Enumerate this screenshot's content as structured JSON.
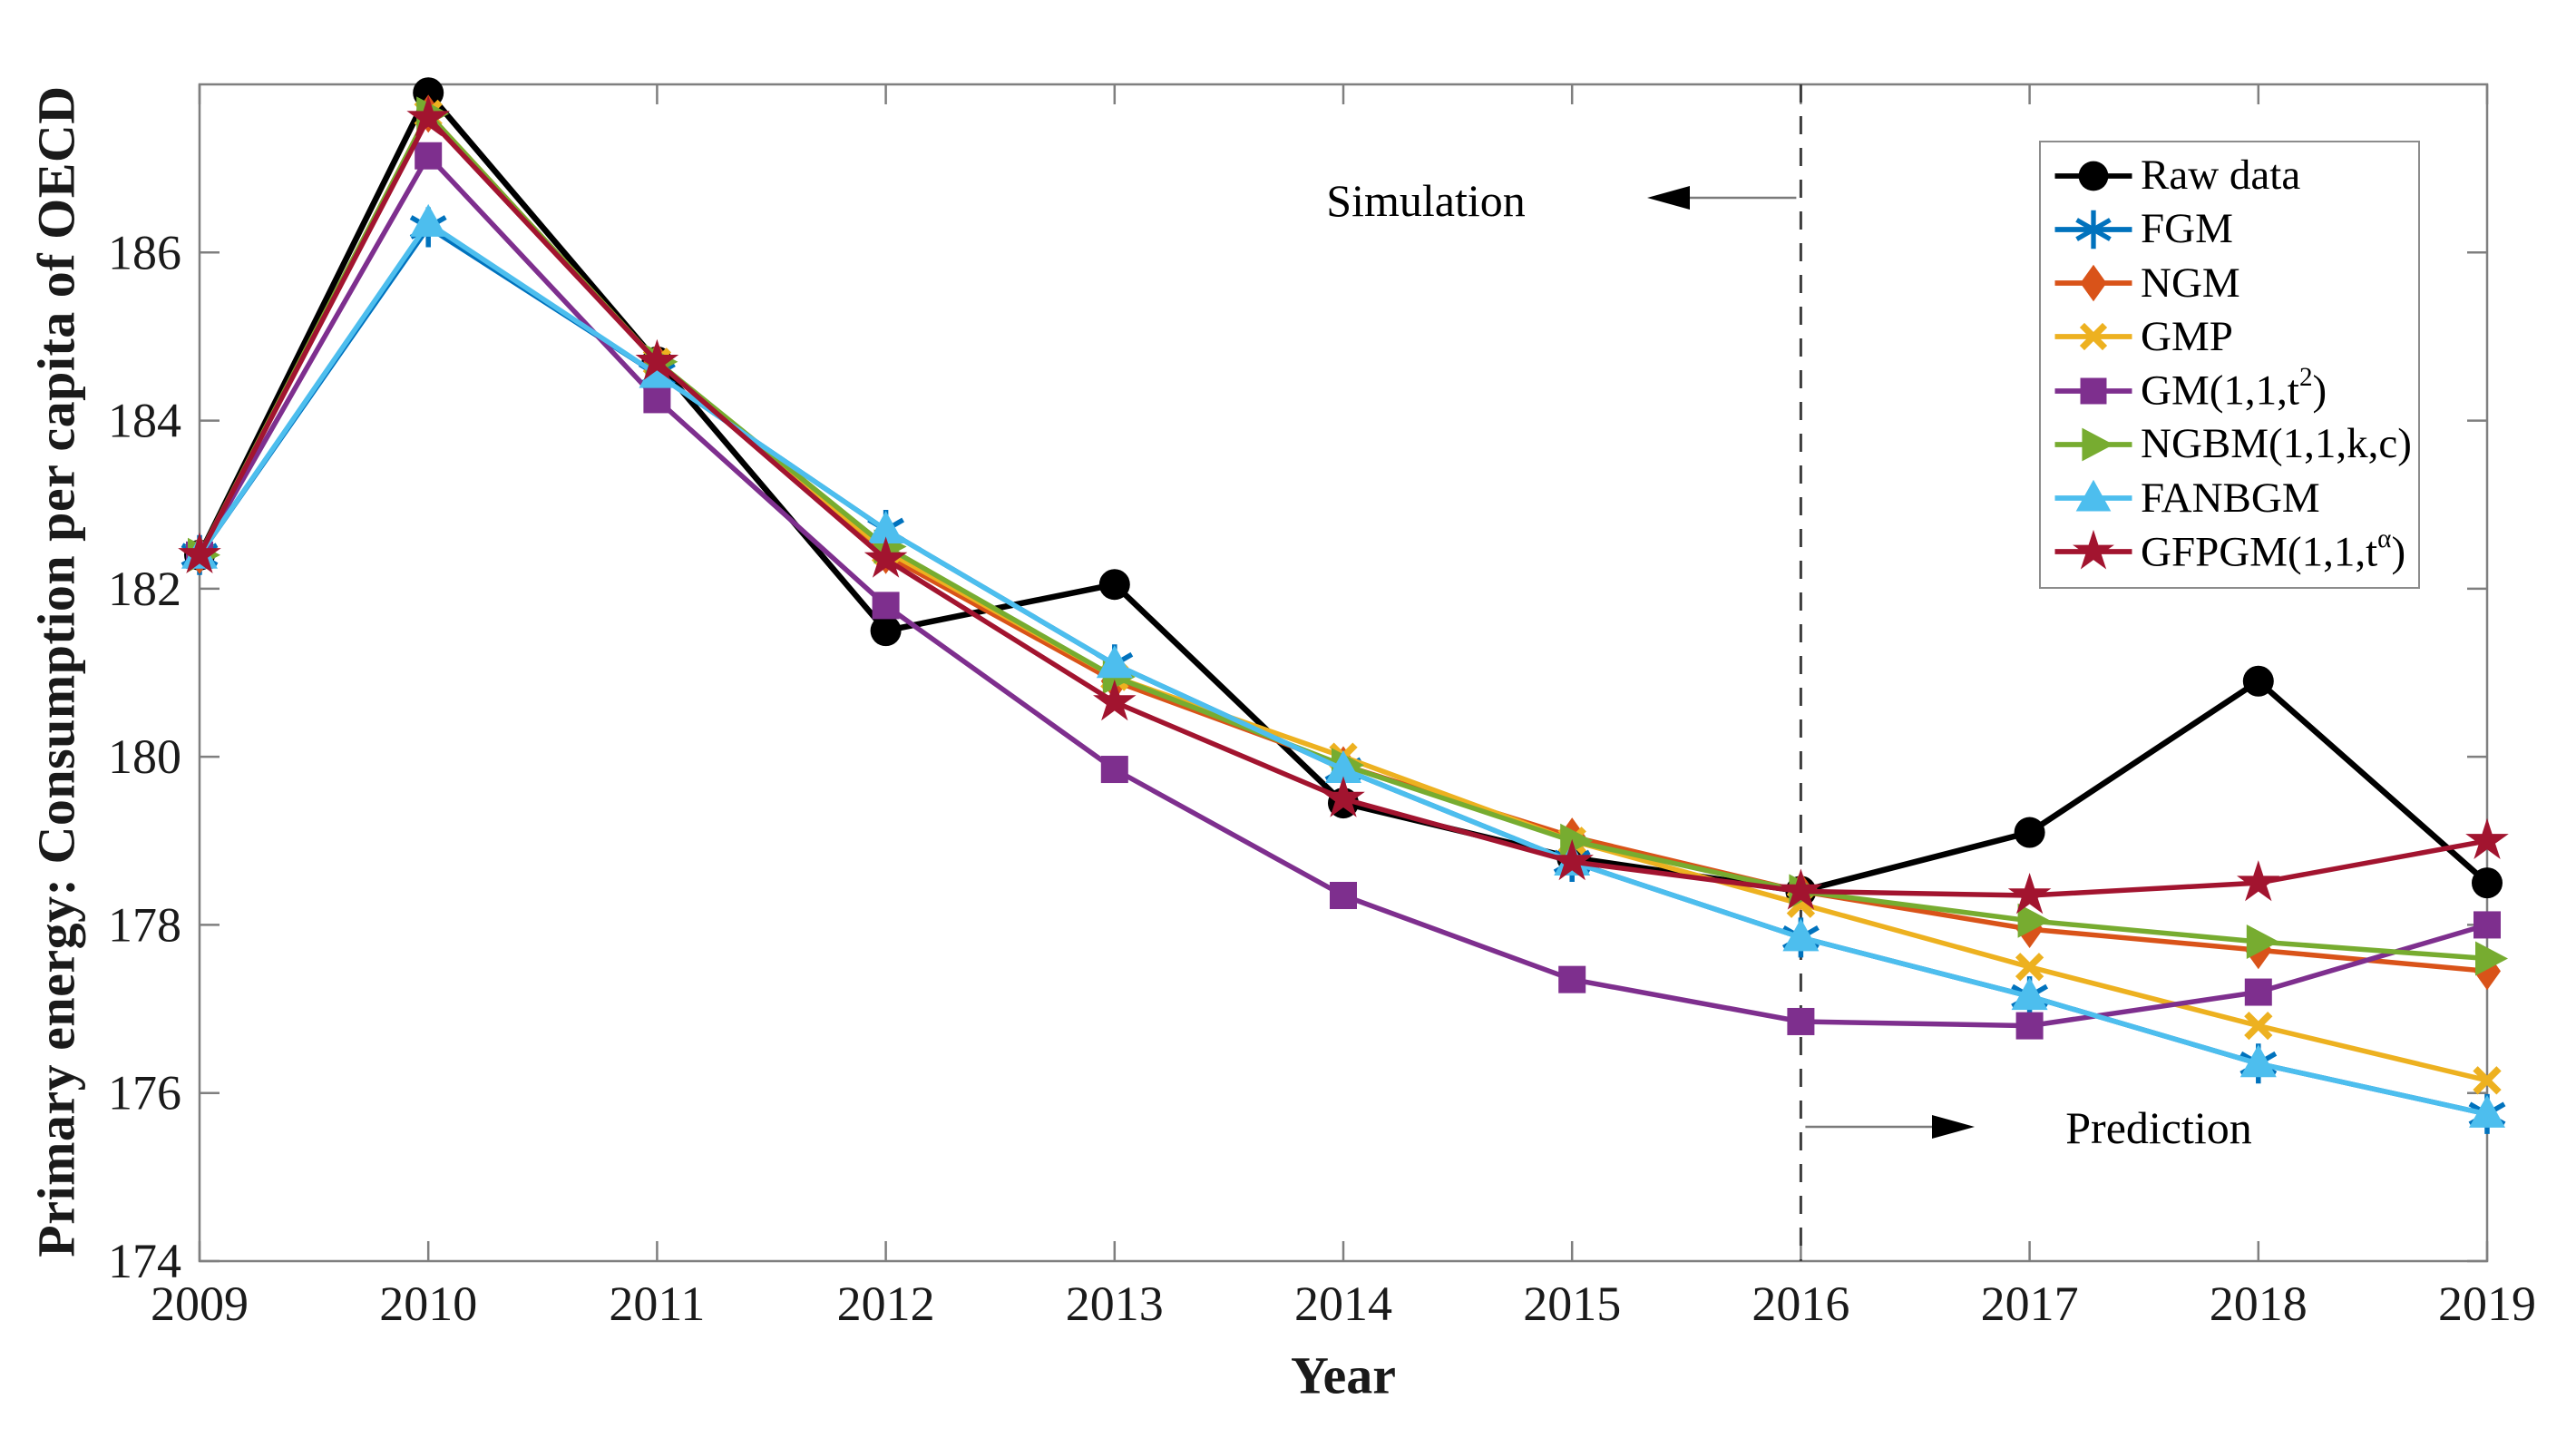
{
  "figure": {
    "ylabel": "Primary energy: Consumption per capita of OECD",
    "xlabel": "Year",
    "annotations": {
      "simulation": "Simulation",
      "prediction": "Prediction"
    }
  },
  "chart_data": {
    "type": "line",
    "title": "",
    "xlabel": "Year",
    "ylabel": "Primary energy: Consumption per capita of OECD",
    "x": [
      2009,
      2010,
      2011,
      2012,
      2013,
      2014,
      2015,
      2016,
      2017,
      2018,
      2019
    ],
    "xlim": [
      2009,
      2019
    ],
    "ylim": [
      174,
      188
    ],
    "yticks": [
      174,
      176,
      178,
      180,
      182,
      184,
      186
    ],
    "grid": false,
    "legend_position": "upper-right-inside",
    "split_line_x": 2016,
    "axis_color": "#7f7f7f",
    "split_line_color": "#3d3d3d",
    "series": [
      {
        "name": "Raw data",
        "label_segments": [
          {
            "t": "Raw data"
          }
        ],
        "color": "#000000",
        "marker": "circle",
        "values": [
          182.4,
          187.9,
          184.7,
          181.5,
          182.05,
          179.45,
          178.8,
          178.4,
          179.1,
          180.9,
          178.5
        ]
      },
      {
        "name": "FGM",
        "label_segments": [
          {
            "t": "FGM"
          }
        ],
        "color": "#0072BD",
        "marker": "asterisk",
        "values": [
          182.4,
          186.3,
          184.55,
          182.7,
          181.1,
          179.85,
          178.75,
          177.85,
          177.15,
          176.35,
          175.75
        ]
      },
      {
        "name": "NGM",
        "label_segments": [
          {
            "t": "NGM"
          }
        ],
        "color": "#D95319",
        "marker": "diamond",
        "values": [
          182.4,
          187.65,
          184.7,
          182.4,
          180.9,
          179.9,
          179.05,
          178.4,
          177.95,
          177.7,
          177.45
        ]
      },
      {
        "name": "GMP",
        "label_segments": [
          {
            "t": "GMP"
          }
        ],
        "color": "#EDB120",
        "marker": "x",
        "values": [
          182.4,
          187.65,
          184.7,
          182.45,
          180.95,
          180.0,
          179.0,
          178.25,
          177.5,
          176.8,
          176.15
        ]
      },
      {
        "name": "GM(1,1,t^2)",
        "label_segments": [
          {
            "t": "GM(1,1,t"
          },
          {
            "sup": "2"
          },
          {
            "t": ")"
          }
        ],
        "color": "#7E2F8E",
        "marker": "square",
        "values": [
          182.4,
          187.15,
          184.25,
          181.8,
          179.85,
          178.35,
          177.35,
          176.85,
          176.8,
          177.2,
          178.0
        ]
      },
      {
        "name": "NGBM(1,1,k,c)",
        "label_segments": [
          {
            "t": "NGBM(1,1,k,c)"
          }
        ],
        "color": "#77AC30",
        "marker": "triangle-right",
        "values": [
          182.4,
          187.65,
          184.7,
          182.5,
          180.95,
          179.9,
          179.0,
          178.4,
          178.05,
          177.8,
          177.6
        ]
      },
      {
        "name": "FANBGM",
        "label_segments": [
          {
            "t": "FANBGM"
          }
        ],
        "color": "#4DBEEE",
        "marker": "triangle-up",
        "values": [
          182.4,
          186.35,
          184.55,
          182.7,
          181.1,
          179.85,
          178.75,
          177.85,
          177.15,
          176.35,
          175.75
        ]
      },
      {
        "name": "GFPGM(1,1,t^α)",
        "label_segments": [
          {
            "t": "GFPGM(1,1,t"
          },
          {
            "sup": "α"
          },
          {
            "t": ")"
          }
        ],
        "color": "#A2142F",
        "marker": "star",
        "values": [
          182.4,
          187.6,
          184.7,
          182.35,
          180.65,
          179.5,
          178.75,
          178.4,
          178.35,
          178.5,
          179.0
        ]
      }
    ]
  }
}
